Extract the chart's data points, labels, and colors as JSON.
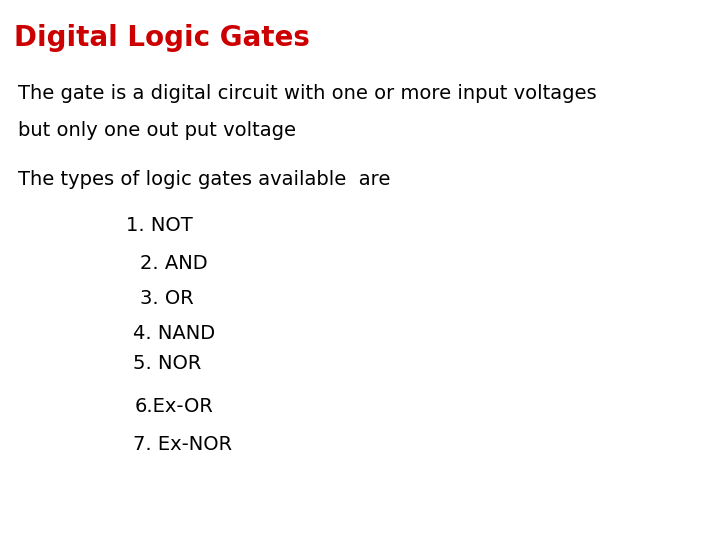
{
  "title": "Digital Logic Gates",
  "title_color": "#cc0000",
  "background_color": "#ffffff",
  "text_color": "#000000",
  "body_text_1_line1": "The gate is a digital circuit with one or more input voltages",
  "body_text_1_line2": "but only one out put voltage",
  "body_text_2": "The types of logic gates available  are",
  "list_items": [
    "1. NOT",
    "2. AND",
    "3. OR",
    "4. NAND",
    "5. NOR",
    "6.Ex-OR",
    "7. Ex-NOR"
  ],
  "title_fontsize": 20,
  "body_fontsize": 14,
  "list_fontsize": 14,
  "font_family": "DejaVu Sans"
}
